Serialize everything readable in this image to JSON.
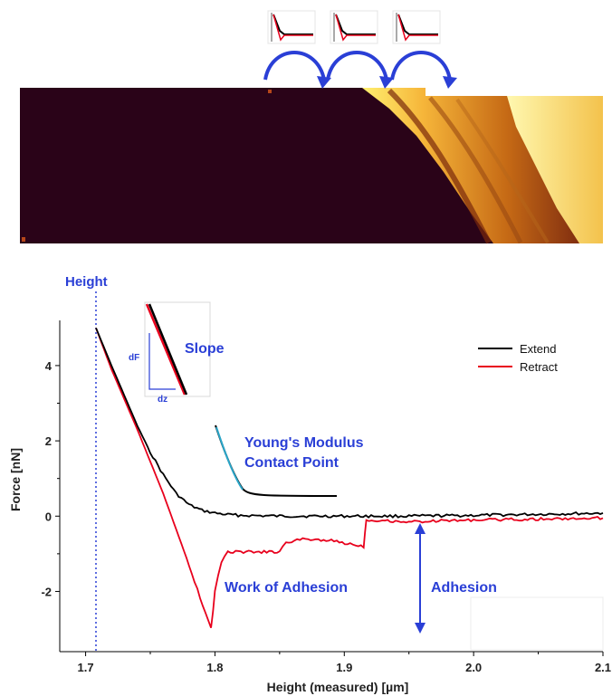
{
  "colors": {
    "extend": "#000000",
    "retract": "#e8001c",
    "annotation": "#2a3fd6",
    "fit": "#2aa6c9",
    "heatmap_dark": "#2a0318",
    "heatmap_mid": "#b8520f",
    "heatmap_light": "#fff49a"
  },
  "chart_data": [
    {
      "type": "heatmap",
      "title": "",
      "description_values": "map dark on the left, bright on the right"
    },
    {
      "type": "line",
      "title": "",
      "xlabel": "Height (measured) [µm]",
      "ylabel": "Force [nN]",
      "xlim": [
        1.68,
        2.1
      ],
      "ylim": [
        -3.6,
        5.2
      ],
      "xticks": [
        1.7,
        1.8,
        1.9,
        2.0,
        2.1
      ],
      "xtick_labels": [
        "1.7",
        "1.8",
        "1.9",
        "2.0",
        "2.1"
      ],
      "yticks": [
        -2,
        0,
        2,
        4
      ],
      "ytick_labels": [
        "-2",
        "0",
        "2",
        "4"
      ],
      "grid": false,
      "legend_position": "top-right",
      "series": [
        {
          "name": "Extend",
          "color": "#000000",
          "x": [
            1.708,
            1.72,
            1.73,
            1.74,
            1.75,
            1.76,
            1.77,
            1.78,
            1.79,
            1.8,
            1.81,
            1.82,
            1.85,
            1.9,
            1.95,
            2.0,
            2.05,
            2.1
          ],
          "y": [
            5.0,
            4.0,
            3.2,
            2.4,
            1.7,
            1.1,
            0.6,
            0.3,
            0.15,
            0.08,
            0.04,
            0.02,
            0.0,
            0.0,
            0.0,
            0.02,
            0.05,
            0.08
          ]
        },
        {
          "name": "Retract",
          "color": "#e8001c",
          "x": [
            1.708,
            1.72,
            1.74,
            1.76,
            1.78,
            1.797,
            1.8,
            1.805,
            1.81,
            1.83,
            1.85,
            1.855,
            1.87,
            1.89,
            1.915,
            1.917,
            1.95,
            2.0,
            2.05,
            2.1
          ],
          "y": [
            5.0,
            3.9,
            2.3,
            0.6,
            -1.3,
            -3.0,
            -2.0,
            -1.2,
            -0.95,
            -0.95,
            -0.95,
            -0.7,
            -0.6,
            -0.65,
            -0.8,
            -0.1,
            -0.15,
            -0.1,
            -0.08,
            -0.05
          ]
        }
      ]
    }
  ],
  "annotations": {
    "height": "Height",
    "slope": "Slope",
    "df": "dF",
    "dz": "dz",
    "youngs_modulus": "Young's Modulus",
    "contact_point": "Contact Point",
    "work_of_adhesion": "Work of Adhesion",
    "adhesion": "Adhesion"
  },
  "legend": {
    "extend": "Extend",
    "retract": "Retract"
  }
}
